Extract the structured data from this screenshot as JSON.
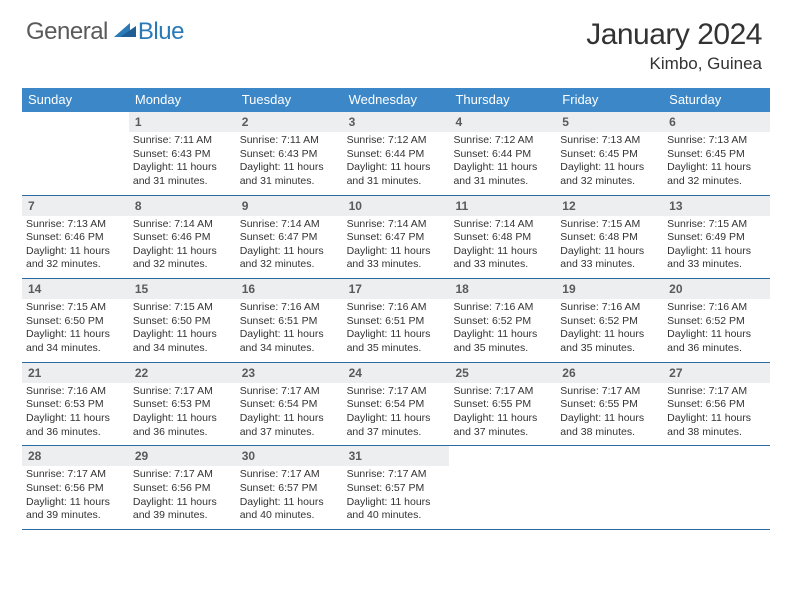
{
  "logo": {
    "text1": "General",
    "text2": "Blue"
  },
  "title": "January 2024",
  "location": "Kimbo, Guinea",
  "colors": {
    "header_bg": "#3b87c8",
    "header_text": "#ffffff",
    "daynum_bg": "#eceeef",
    "daynum_text": "#5a5a5a",
    "border": "#2a6aa0",
    "body_text": "#333333",
    "logo_gray": "#5a5a5a",
    "logo_blue": "#2a7ab8"
  },
  "weekdays": [
    "Sunday",
    "Monday",
    "Tuesday",
    "Wednesday",
    "Thursday",
    "Friday",
    "Saturday"
  ],
  "first_weekday": 1,
  "days": [
    {
      "n": 1,
      "sr": "7:11 AM",
      "ss": "6:43 PM",
      "dl": "11 hours and 31 minutes."
    },
    {
      "n": 2,
      "sr": "7:11 AM",
      "ss": "6:43 PM",
      "dl": "11 hours and 31 minutes."
    },
    {
      "n": 3,
      "sr": "7:12 AM",
      "ss": "6:44 PM",
      "dl": "11 hours and 31 minutes."
    },
    {
      "n": 4,
      "sr": "7:12 AM",
      "ss": "6:44 PM",
      "dl": "11 hours and 31 minutes."
    },
    {
      "n": 5,
      "sr": "7:13 AM",
      "ss": "6:45 PM",
      "dl": "11 hours and 32 minutes."
    },
    {
      "n": 6,
      "sr": "7:13 AM",
      "ss": "6:45 PM",
      "dl": "11 hours and 32 minutes."
    },
    {
      "n": 7,
      "sr": "7:13 AM",
      "ss": "6:46 PM",
      "dl": "11 hours and 32 minutes."
    },
    {
      "n": 8,
      "sr": "7:14 AM",
      "ss": "6:46 PM",
      "dl": "11 hours and 32 minutes."
    },
    {
      "n": 9,
      "sr": "7:14 AM",
      "ss": "6:47 PM",
      "dl": "11 hours and 32 minutes."
    },
    {
      "n": 10,
      "sr": "7:14 AM",
      "ss": "6:47 PM",
      "dl": "11 hours and 33 minutes."
    },
    {
      "n": 11,
      "sr": "7:14 AM",
      "ss": "6:48 PM",
      "dl": "11 hours and 33 minutes."
    },
    {
      "n": 12,
      "sr": "7:15 AM",
      "ss": "6:48 PM",
      "dl": "11 hours and 33 minutes."
    },
    {
      "n": 13,
      "sr": "7:15 AM",
      "ss": "6:49 PM",
      "dl": "11 hours and 33 minutes."
    },
    {
      "n": 14,
      "sr": "7:15 AM",
      "ss": "6:50 PM",
      "dl": "11 hours and 34 minutes."
    },
    {
      "n": 15,
      "sr": "7:15 AM",
      "ss": "6:50 PM",
      "dl": "11 hours and 34 minutes."
    },
    {
      "n": 16,
      "sr": "7:16 AM",
      "ss": "6:51 PM",
      "dl": "11 hours and 34 minutes."
    },
    {
      "n": 17,
      "sr": "7:16 AM",
      "ss": "6:51 PM",
      "dl": "11 hours and 35 minutes."
    },
    {
      "n": 18,
      "sr": "7:16 AM",
      "ss": "6:52 PM",
      "dl": "11 hours and 35 minutes."
    },
    {
      "n": 19,
      "sr": "7:16 AM",
      "ss": "6:52 PM",
      "dl": "11 hours and 35 minutes."
    },
    {
      "n": 20,
      "sr": "7:16 AM",
      "ss": "6:52 PM",
      "dl": "11 hours and 36 minutes."
    },
    {
      "n": 21,
      "sr": "7:16 AM",
      "ss": "6:53 PM",
      "dl": "11 hours and 36 minutes."
    },
    {
      "n": 22,
      "sr": "7:17 AM",
      "ss": "6:53 PM",
      "dl": "11 hours and 36 minutes."
    },
    {
      "n": 23,
      "sr": "7:17 AM",
      "ss": "6:54 PM",
      "dl": "11 hours and 37 minutes."
    },
    {
      "n": 24,
      "sr": "7:17 AM",
      "ss": "6:54 PM",
      "dl": "11 hours and 37 minutes."
    },
    {
      "n": 25,
      "sr": "7:17 AM",
      "ss": "6:55 PM",
      "dl": "11 hours and 37 minutes."
    },
    {
      "n": 26,
      "sr": "7:17 AM",
      "ss": "6:55 PM",
      "dl": "11 hours and 38 minutes."
    },
    {
      "n": 27,
      "sr": "7:17 AM",
      "ss": "6:56 PM",
      "dl": "11 hours and 38 minutes."
    },
    {
      "n": 28,
      "sr": "7:17 AM",
      "ss": "6:56 PM",
      "dl": "11 hours and 39 minutes."
    },
    {
      "n": 29,
      "sr": "7:17 AM",
      "ss": "6:56 PM",
      "dl": "11 hours and 39 minutes."
    },
    {
      "n": 30,
      "sr": "7:17 AM",
      "ss": "6:57 PM",
      "dl": "11 hours and 40 minutes."
    },
    {
      "n": 31,
      "sr": "7:17 AM",
      "ss": "6:57 PM",
      "dl": "11 hours and 40 minutes."
    }
  ],
  "labels": {
    "sunrise": "Sunrise:",
    "sunset": "Sunset:",
    "daylight": "Daylight:"
  }
}
